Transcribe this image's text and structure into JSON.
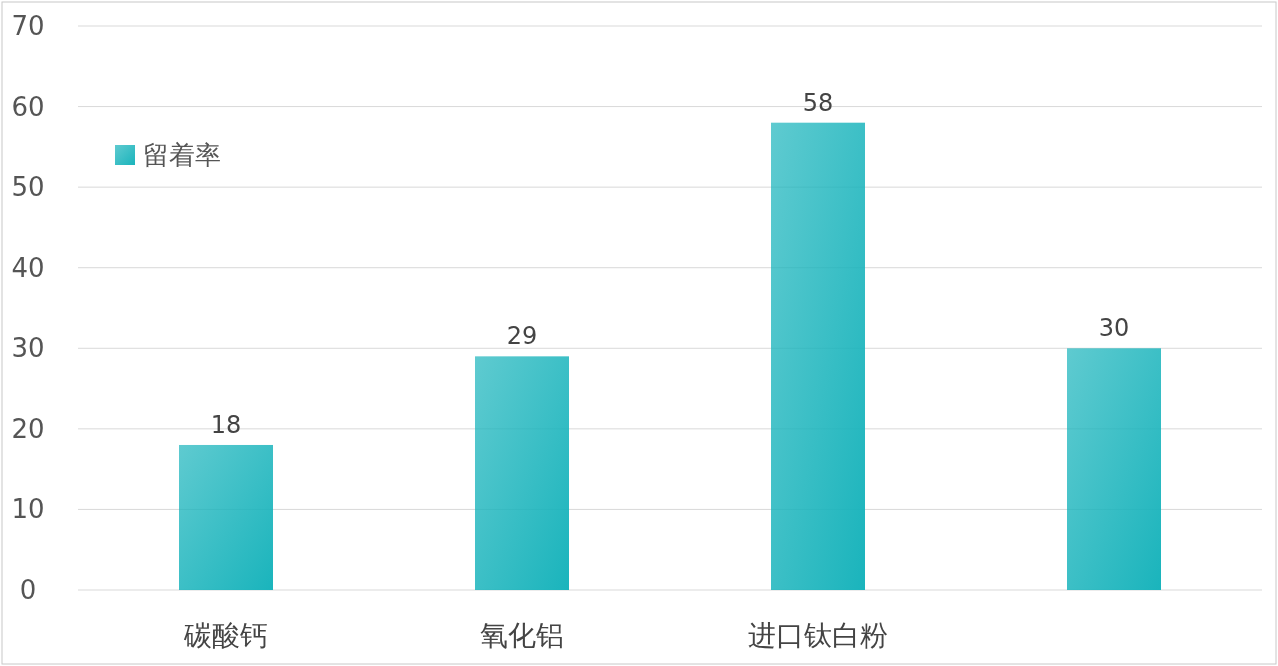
{
  "chart_data": {
    "type": "bar",
    "categories": [
      "碳酸钙",
      "氧化铝",
      "进口钛白粉",
      null
    ],
    "series": [
      {
        "name": "留着率",
        "color": "#1ab4bc",
        "values": [
          18,
          29,
          58,
          30
        ]
      }
    ],
    "ylim": [
      0,
      70
    ],
    "yticks": [
      0,
      10,
      20,
      30,
      40,
      50,
      60,
      70
    ],
    "grid": "y",
    "legend": "top left",
    "data_labels": true
  }
}
